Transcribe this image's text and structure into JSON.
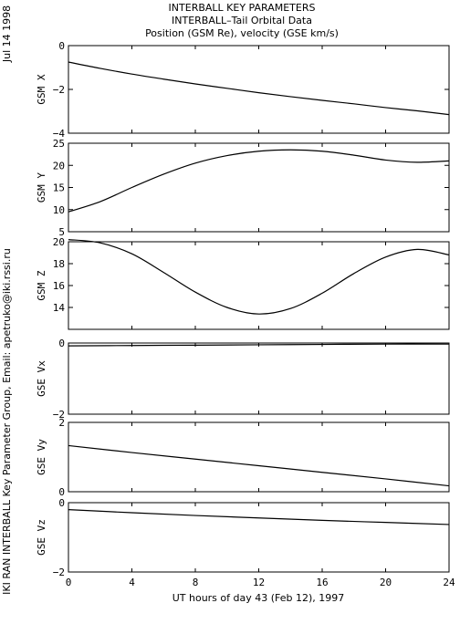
{
  "header": {
    "line1": "INTERBALL KEY PARAMETERS",
    "line2": "INTERBALL–Tail Orbital Data",
    "line3": "Position (GSM Re), velocity (GSE km/s)"
  },
  "side": {
    "date": "Jul 14 1998",
    "credit": "IKI RAN INTERBALL Key Parameter Group, Email: apetruko@iki.rssi.ru"
  },
  "x_axis": {
    "label": "UT hours of day  43 (Feb 12), 1997",
    "ticks": [
      0,
      4,
      8,
      12,
      16,
      20,
      24
    ],
    "range": [
      0,
      24
    ]
  },
  "chart_data": [
    {
      "type": "line",
      "ylabel": "GSM X",
      "ylim": [
        -4,
        0
      ],
      "yticks": [
        -4,
        -2,
        0
      ],
      "x": [
        0,
        2,
        4,
        6,
        8,
        10,
        12,
        14,
        16,
        18,
        20,
        22,
        24
      ],
      "y": [
        -0.75,
        -1.04,
        -1.3,
        -1.53,
        -1.75,
        -1.95,
        -2.15,
        -2.33,
        -2.5,
        -2.66,
        -2.83,
        -2.98,
        -3.15
      ]
    },
    {
      "type": "line",
      "ylabel": "GSM Y",
      "ylim": [
        5,
        25
      ],
      "yticks": [
        5,
        10,
        15,
        20,
        25
      ],
      "x": [
        0,
        2,
        4,
        6,
        8,
        10,
        12,
        14,
        16,
        18,
        20,
        22,
        24
      ],
      "y": [
        9.5,
        11.8,
        15.0,
        18.0,
        20.5,
        22.2,
        23.2,
        23.5,
        23.2,
        22.3,
        21.2,
        20.7,
        21.0
      ]
    },
    {
      "type": "line",
      "ylabel": "GSM Z",
      "ylim": [
        12,
        20
      ],
      "yticks": [
        14,
        16,
        18,
        20
      ],
      "x": [
        0,
        2,
        4,
        6,
        8,
        10,
        12,
        14,
        16,
        18,
        20,
        22,
        24
      ],
      "y": [
        20.2,
        19.9,
        18.9,
        17.2,
        15.4,
        14.0,
        13.4,
        13.9,
        15.3,
        17.1,
        18.6,
        19.3,
        18.8
      ]
    },
    {
      "type": "line",
      "ylabel": "GSE Vx",
      "ylim": [
        -2,
        0
      ],
      "yticks": [
        -2,
        0
      ],
      "x": [
        0,
        4,
        8,
        12,
        16,
        20,
        24
      ],
      "y": [
        -0.08,
        -0.07,
        -0.06,
        -0.05,
        -0.04,
        -0.03,
        -0.03
      ]
    },
    {
      "type": "line",
      "ylabel": "GSE Vy",
      "ylim": [
        0,
        2
      ],
      "yticks": [
        0,
        2
      ],
      "x": [
        0,
        4,
        8,
        12,
        16,
        20,
        24
      ],
      "y": [
        1.33,
        1.13,
        0.94,
        0.75,
        0.56,
        0.37,
        0.17
      ]
    },
    {
      "type": "line",
      "ylabel": "GSE Vz",
      "ylim": [
        -2,
        0
      ],
      "yticks": [
        -2,
        0
      ],
      "x": [
        0,
        4,
        8,
        12,
        16,
        20,
        24
      ],
      "y": [
        -0.2,
        -0.29,
        -0.37,
        -0.44,
        -0.51,
        -0.57,
        -0.63
      ]
    }
  ]
}
